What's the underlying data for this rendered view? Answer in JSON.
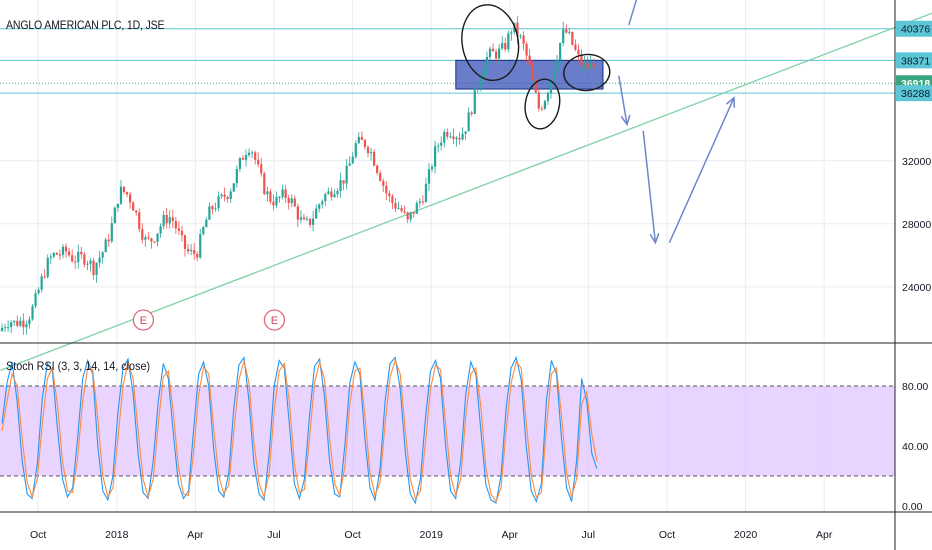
{
  "symbol_title": "ANGLO AMERICAN PLC, 1D, JSE",
  "indicator_title": "Stoch RSI (3, 3, 14, 14, close)",
  "colors": {
    "up": "#26a69a",
    "down": "#ef5350",
    "level_line": "#5cc6d6",
    "trend_line": "#7fd1a7",
    "zone_fill": "#2f4bb5",
    "zone_stroke": "#1a2f80",
    "k_line": "#2196f3",
    "d_line": "#ff8a3d",
    "band_fill": "#e1c4ff",
    "arrow": "#6f86c9",
    "grid": "#e9ecf2"
  },
  "chart_data": [
    {
      "type": "candlestick",
      "title": "ANGLO AMERICAN PLC, 1D, JSE",
      "y_range": [
        20500,
        42200
      ],
      "y_ticks": [
        24000,
        28000,
        32000
      ],
      "horizontal_levels": [
        {
          "value": 40376,
          "label": "40376"
        },
        {
          "value": 38371,
          "label": "38371"
        },
        {
          "value": 36918,
          "label": "36918",
          "highlight": true
        },
        {
          "value": 36288,
          "label": "36288"
        }
      ],
      "x_labels": [
        "Oct",
        "2018",
        "Apr",
        "Jul",
        "Oct",
        "2019",
        "Apr",
        "Jul",
        "Oct",
        "2020",
        "Apr"
      ],
      "close_path": [
        [
          "Sep 2017",
          21200
        ],
        [
          "Oct 2017",
          24100
        ],
        [
          "Nov 2017",
          26900
        ],
        [
          "Dec 2017",
          24600
        ],
        [
          "Jan 2018",
          30000
        ],
        [
          "Feb 2018",
          27500
        ],
        [
          "Mar 2018",
          27800
        ],
        [
          "Apr 2018",
          26300
        ],
        [
          "May 2018",
          30300
        ],
        [
          "Jun 2018",
          32400
        ],
        [
          "Jul 2018",
          29500
        ],
        [
          "Aug 2018",
          28500
        ],
        [
          "Sep 2018",
          29300
        ],
        [
          "Oct 2018",
          33100
        ],
        [
          "Nov 2018",
          31400
        ],
        [
          "Dec 2018",
          27400
        ],
        [
          "Jan 2019",
          32500
        ],
        [
          "Feb 2019",
          34000
        ],
        [
          "Mar 2019",
          37800
        ],
        [
          "Apr 2019",
          40800
        ],
        [
          "May 2019",
          35700
        ],
        [
          "Jun 2019",
          39600
        ],
        [
          "Jul 2019",
          38300
        ]
      ],
      "trendline": [
        [
          "Sep 2017",
          18700
        ],
        [
          "Apr 2020",
          39700
        ]
      ],
      "resistance_zone": {
        "top": 38371,
        "bottom": 36550,
        "from": "Feb 2019",
        "to": "Aug 2019"
      },
      "earnings_markers": [
        "Feb 2018",
        "Jul 2018"
      ],
      "earnings_label": "E",
      "projection_arrows": [
        {
          "from": [
            "Jul 2019",
            40600
          ],
          "to": [
            "Jul 2019",
            42300
          ]
        },
        {
          "from": [
            "Jul 2019",
            37400
          ],
          "to": [
            "Aug 2019",
            34300
          ]
        },
        {
          "from": [
            "Sep 2019",
            33900
          ],
          "to": [
            "Oct 2019",
            26800
          ]
        },
        {
          "from": [
            "Oct 2019",
            26800
          ],
          "to": [
            "Jan 2020",
            36000
          ]
        }
      ]
    },
    {
      "type": "line",
      "title": "Stoch RSI (3, 3, 14, 14, close)",
      "ylim": [
        -4,
        108
      ],
      "y_ticks": [
        0,
        40,
        80
      ],
      "tick_labels": [
        "0.00",
        "40.00",
        "80.00"
      ],
      "band": [
        20,
        80
      ],
      "series": [
        {
          "values": [
            55,
            82,
            96,
            70,
            30,
            8,
            5,
            28,
            72,
            95,
            90,
            52,
            18,
            6,
            12,
            45,
            85,
            97,
            88,
            40,
            10,
            4,
            20,
            62,
            92,
            98,
            75,
            35,
            9,
            5,
            30,
            70,
            95,
            85,
            48,
            15,
            5,
            10,
            50,
            88,
            96,
            80,
            38,
            10,
            6,
            22,
            66,
            94,
            99,
            70,
            28,
            8,
            4,
            35,
            80,
            97,
            92,
            55,
            15,
            5,
            18,
            60,
            93,
            98,
            72,
            30,
            8,
            6,
            40,
            82,
            96,
            88,
            45,
            12,
            4,
            25,
            70,
            95,
            99,
            78,
            36,
            8,
            2,
            18,
            58,
            90,
            97,
            85,
            40,
            10,
            5,
            30,
            75,
            96,
            88,
            50,
            14,
            4,
            2,
            20,
            65,
            92,
            99,
            84,
            40,
            10,
            3,
            15,
            70,
            97,
            88,
            45,
            12,
            3,
            30,
            85,
            70,
            35,
            25
          ]
        },
        {
          "values": [
            50,
            70,
            88,
            80,
            45,
            16,
            6,
            18,
            55,
            85,
            92,
            68,
            30,
            10,
            9,
            32,
            70,
            92,
            91,
            58,
            20,
            6,
            12,
            45,
            80,
            96,
            85,
            50,
            18,
            6,
            18,
            55,
            86,
            90,
            62,
            26,
            8,
            7,
            35,
            74,
            93,
            88,
            52,
            20,
            8,
            14,
            50,
            84,
            97,
            82,
            42,
            15,
            6,
            22,
            64,
            90,
            95,
            70,
            28,
            9,
            11,
            45,
            82,
            96,
            84,
            45,
            15,
            7,
            26,
            68,
            90,
            92,
            60,
            22,
            7,
            16,
            55,
            86,
            97,
            88,
            50,
            18,
            5,
            10,
            42,
            78,
            94,
            91,
            55,
            20,
            7,
            18,
            60,
            88,
            92,
            66,
            25,
            8,
            3,
            12,
            50,
            82,
            96,
            92,
            56,
            20,
            6,
            9,
            52,
            88,
            92,
            60,
            22,
            6,
            18,
            68,
            76,
            48,
            30
          ]
        }
      ]
    }
  ]
}
